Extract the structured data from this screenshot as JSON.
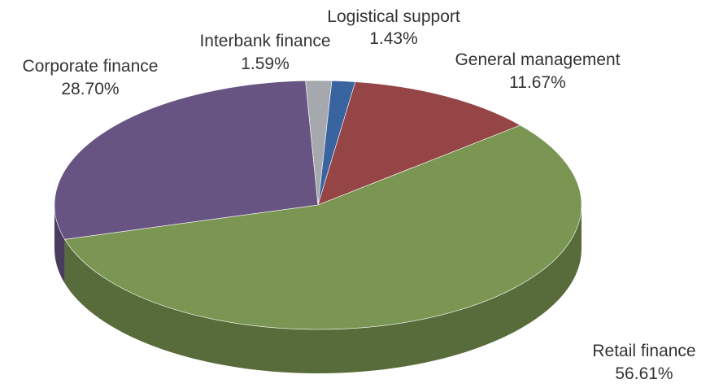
{
  "chart_data": {
    "type": "pie",
    "style": "3d",
    "title": "",
    "slices": [
      {
        "name": "Logistical support",
        "value": 1.43,
        "label": "1.43%",
        "color": "#3a64a0"
      },
      {
        "name": "General management",
        "value": 11.67,
        "label": "11.67%",
        "color": "#954545"
      },
      {
        "name": "Retail finance",
        "value": 56.61,
        "label": "56.61%",
        "color": "#7a9652"
      },
      {
        "name": "Corporate finance",
        "value": 28.7,
        "label": "28.70%",
        "color": "#675482"
      },
      {
        "name": "Interbank finance",
        "value": 1.59,
        "label": "1.59%",
        "color": "#a5a8ac"
      }
    ],
    "legend": "none"
  }
}
